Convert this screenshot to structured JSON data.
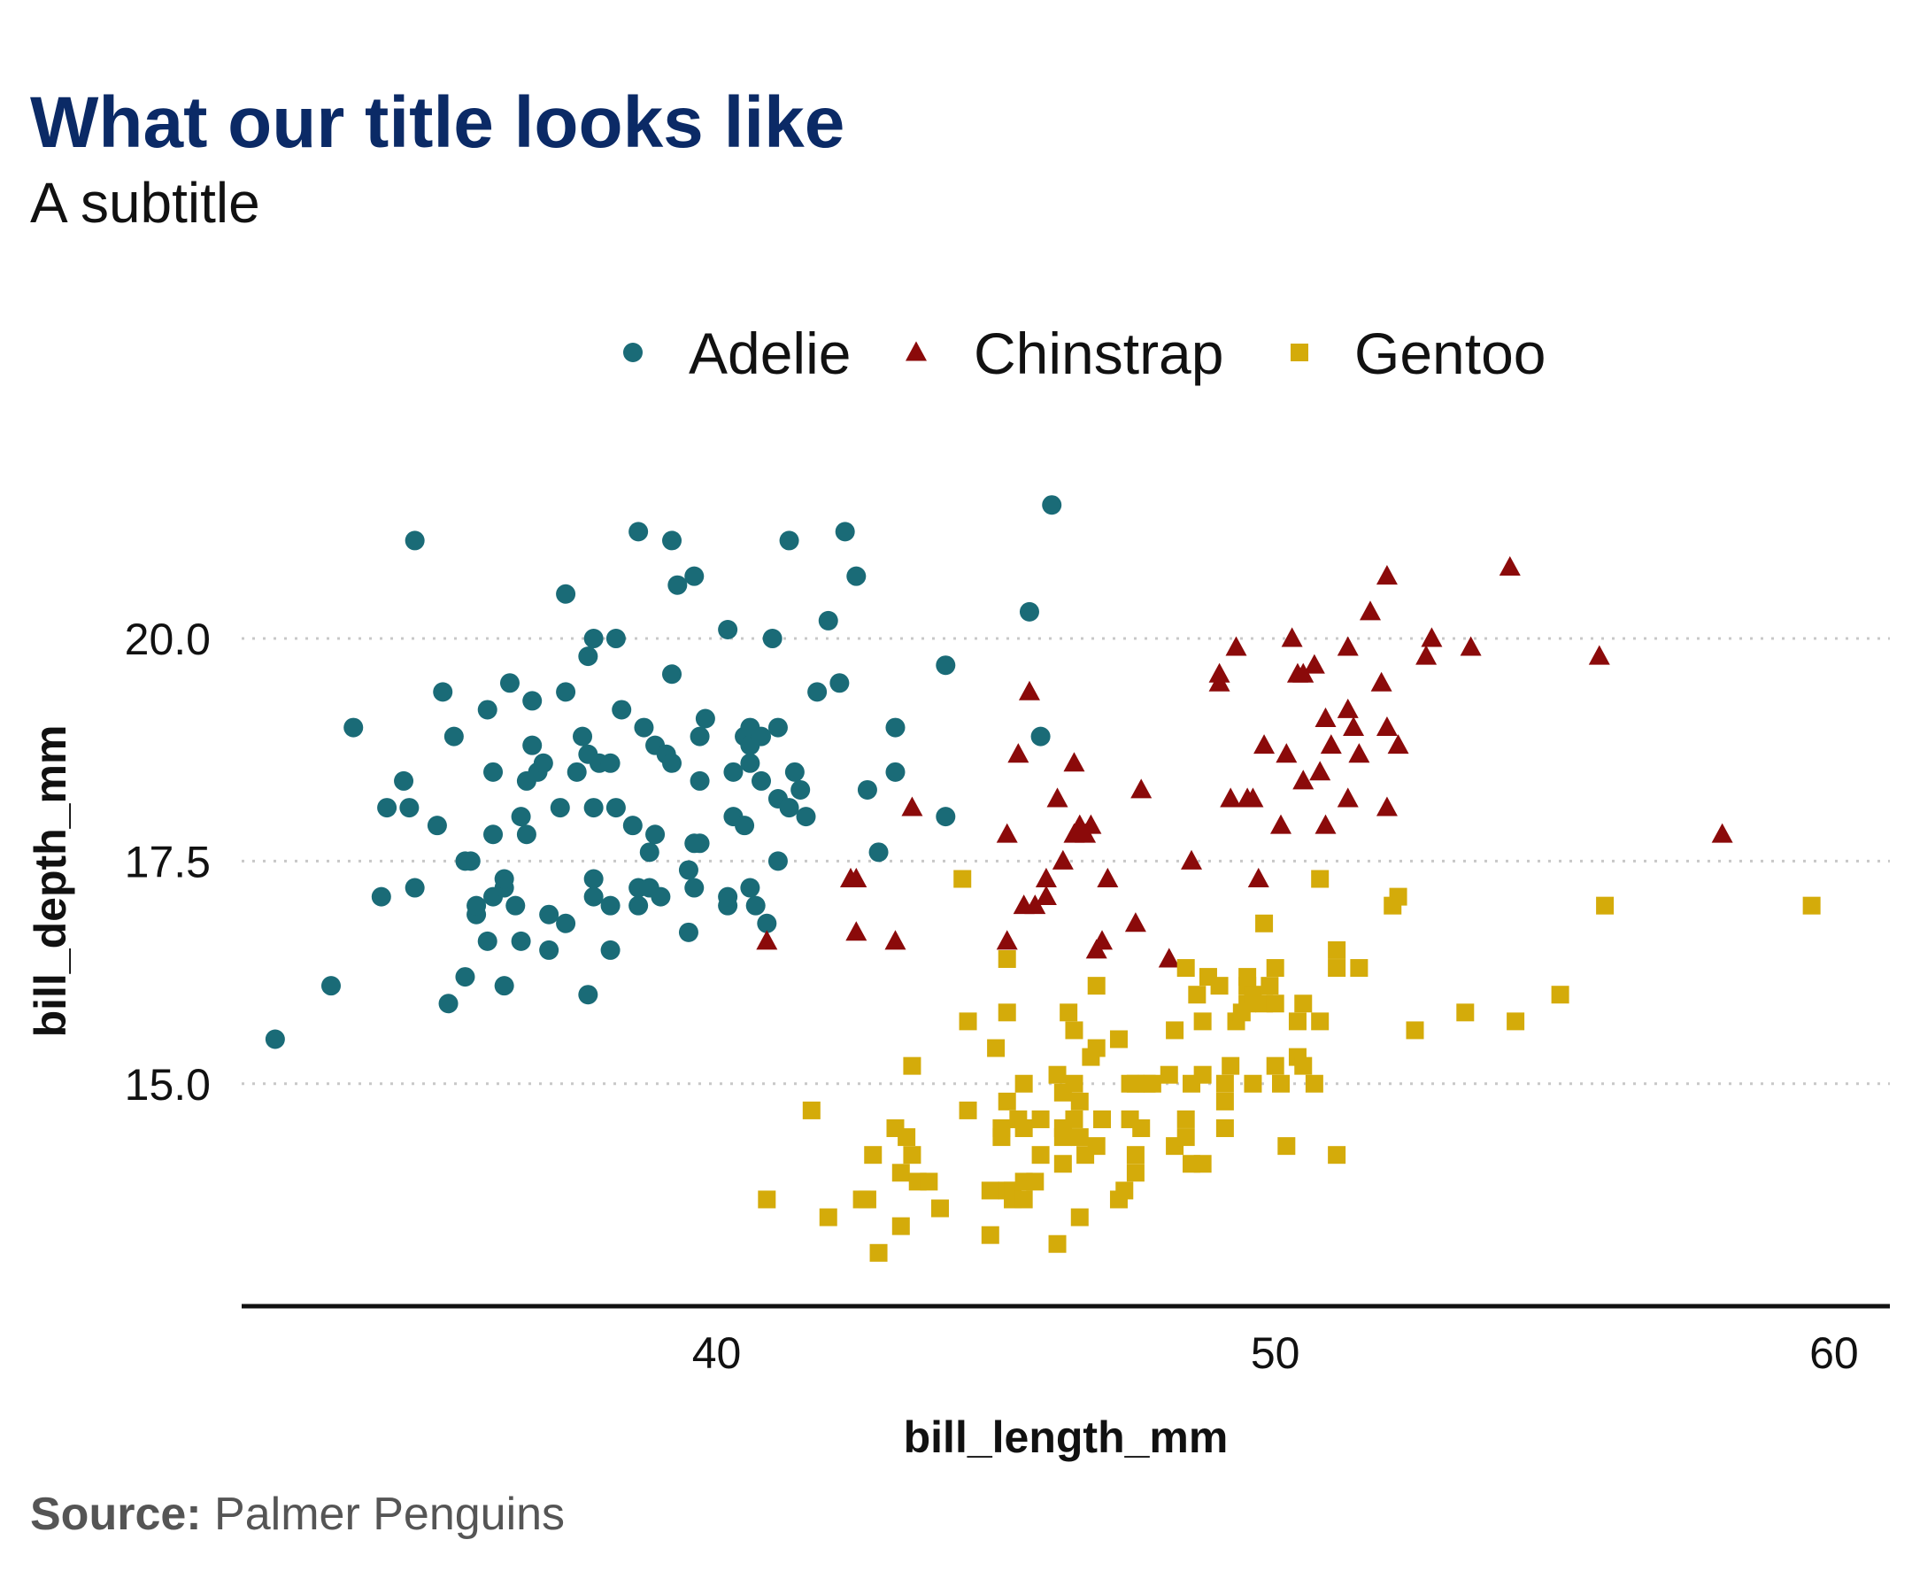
{
  "title": "What our title looks like",
  "subtitle": "A subtitle",
  "caption": {
    "label": "Source:",
    "text": " Palmer Penguins"
  },
  "chart_data": {
    "type": "scatter",
    "xlabel": "bill_length_mm",
    "ylabel": "bill_depth_mm",
    "xlim": [
      31.5,
      61
    ],
    "ylim": [
      12.7,
      21.9
    ],
    "xticks": [
      40,
      50,
      60
    ],
    "xtick_labels": [
      "40",
      "50",
      "60"
    ],
    "yticks": [
      15,
      17.5,
      20
    ],
    "ytick_labels": [
      "15.0",
      "17.5",
      "20.0"
    ],
    "grid": "horizontal dotted",
    "legend_position": "top",
    "series": [
      {
        "name": "Adelie",
        "color": "#1a6b77",
        "marker": "circle",
        "points": [
          [
            32.1,
            15.5
          ],
          [
            33.1,
            16.1
          ],
          [
            33.5,
            19.0
          ],
          [
            34.0,
            17.1
          ],
          [
            34.1,
            18.1
          ],
          [
            34.4,
            18.4
          ],
          [
            34.5,
            18.1
          ],
          [
            34.6,
            17.2
          ],
          [
            34.6,
            21.1
          ],
          [
            35.0,
            17.9
          ],
          [
            35.1,
            19.4
          ],
          [
            35.2,
            15.9
          ],
          [
            35.3,
            18.9
          ],
          [
            35.5,
            16.2
          ],
          [
            35.5,
            17.5
          ],
          [
            35.6,
            17.5
          ],
          [
            35.7,
            16.9
          ],
          [
            35.7,
            17.0
          ],
          [
            35.9,
            16.6
          ],
          [
            35.9,
            19.2
          ],
          [
            36.0,
            17.1
          ],
          [
            36.0,
            17.8
          ],
          [
            36.0,
            18.5
          ],
          [
            36.2,
            17.2
          ],
          [
            36.2,
            17.3
          ],
          [
            36.2,
            16.1
          ],
          [
            36.3,
            19.5
          ],
          [
            36.4,
            17.0
          ],
          [
            36.5,
            16.6
          ],
          [
            36.5,
            18.0
          ],
          [
            36.6,
            17.8
          ],
          [
            36.6,
            18.4
          ],
          [
            36.7,
            19.3
          ],
          [
            36.7,
            18.8
          ],
          [
            36.8,
            18.5
          ],
          [
            36.9,
            18.6
          ],
          [
            37.0,
            16.9
          ],
          [
            37.0,
            16.5
          ],
          [
            37.2,
            18.1
          ],
          [
            37.3,
            16.8
          ],
          [
            37.3,
            19.4
          ],
          [
            37.3,
            20.5
          ],
          [
            37.5,
            18.5
          ],
          [
            37.6,
            18.9
          ],
          [
            37.7,
            18.7
          ],
          [
            37.7,
            16.0
          ],
          [
            37.7,
            19.8
          ],
          [
            37.8,
            17.1
          ],
          [
            37.8,
            17.3
          ],
          [
            37.8,
            18.1
          ],
          [
            37.8,
            20.0
          ],
          [
            37.9,
            18.6
          ],
          [
            38.1,
            16.5
          ],
          [
            38.1,
            17.0
          ],
          [
            38.1,
            18.6
          ],
          [
            38.2,
            18.1
          ],
          [
            38.2,
            20.0
          ],
          [
            38.3,
            19.2
          ],
          [
            38.5,
            17.9
          ],
          [
            38.6,
            17.0
          ],
          [
            38.6,
            17.2
          ],
          [
            38.6,
            21.2
          ],
          [
            38.7,
            19.0
          ],
          [
            38.8,
            17.2
          ],
          [
            38.8,
            17.6
          ],
          [
            38.9,
            17.8
          ],
          [
            38.9,
            18.8
          ],
          [
            39.0,
            17.1
          ],
          [
            39.1,
            18.7
          ],
          [
            39.2,
            18.6
          ],
          [
            39.2,
            19.6
          ],
          [
            39.2,
            21.1
          ],
          [
            39.3,
            20.6
          ],
          [
            39.5,
            16.7
          ],
          [
            39.5,
            17.4
          ],
          [
            39.6,
            17.2
          ],
          [
            39.6,
            17.7
          ],
          [
            39.6,
            20.7
          ],
          [
            39.7,
            17.7
          ],
          [
            39.7,
            18.4
          ],
          [
            39.7,
            18.9
          ],
          [
            39.8,
            19.1
          ],
          [
            40.2,
            17.0
          ],
          [
            40.2,
            17.1
          ],
          [
            40.2,
            20.1
          ],
          [
            40.3,
            18.0
          ],
          [
            40.3,
            18.5
          ],
          [
            40.5,
            17.9
          ],
          [
            40.5,
            18.9
          ],
          [
            40.6,
            17.2
          ],
          [
            40.6,
            18.6
          ],
          [
            40.6,
            18.8
          ],
          [
            40.6,
            19.0
          ],
          [
            40.7,
            17.0
          ],
          [
            40.8,
            18.4
          ],
          [
            40.8,
            18.9
          ],
          [
            40.9,
            16.8
          ],
          [
            41.0,
            20.0
          ],
          [
            41.1,
            17.5
          ],
          [
            41.1,
            18.2
          ],
          [
            41.1,
            19.0
          ],
          [
            41.3,
            18.1
          ],
          [
            41.3,
            21.1
          ],
          [
            41.4,
            18.5
          ],
          [
            41.5,
            18.3
          ],
          [
            41.6,
            18.0
          ],
          [
            41.8,
            19.4
          ],
          [
            42.0,
            20.2
          ],
          [
            42.2,
            19.5
          ],
          [
            42.3,
            21.2
          ],
          [
            42.5,
            20.7
          ],
          [
            42.7,
            18.3
          ],
          [
            42.9,
            17.6
          ],
          [
            43.2,
            18.5
          ],
          [
            43.2,
            19.0
          ],
          [
            44.1,
            18.0
          ],
          [
            44.1,
            19.7
          ],
          [
            45.6,
            20.3
          ],
          [
            45.8,
            18.9
          ],
          [
            46.0,
            21.5
          ]
        ]
      },
      {
        "name": "Chinstrap",
        "color": "#8b0a0a",
        "marker": "triangle",
        "points": [
          [
            40.9,
            16.6
          ],
          [
            42.4,
            17.3
          ],
          [
            42.5,
            17.3
          ],
          [
            42.5,
            16.7
          ],
          [
            43.2,
            16.6
          ],
          [
            43.5,
            18.1
          ],
          [
            45.2,
            17.8
          ],
          [
            45.2,
            16.6
          ],
          [
            45.4,
            18.7
          ],
          [
            45.5,
            17.0
          ],
          [
            45.6,
            19.4
          ],
          [
            45.7,
            17.0
          ],
          [
            45.9,
            17.1
          ],
          [
            45.9,
            17.3
          ],
          [
            46.1,
            18.2
          ],
          [
            46.2,
            17.5
          ],
          [
            46.4,
            17.8
          ],
          [
            46.4,
            18.6
          ],
          [
            46.5,
            17.9
          ],
          [
            46.6,
            17.8
          ],
          [
            46.7,
            17.9
          ],
          [
            46.8,
            16.5
          ],
          [
            46.9,
            16.6
          ],
          [
            47.0,
            17.3
          ],
          [
            47.5,
            16.8
          ],
          [
            47.6,
            18.3
          ],
          [
            48.1,
            16.4
          ],
          [
            48.5,
            17.5
          ],
          [
            49.0,
            19.5
          ],
          [
            49.0,
            19.6
          ],
          [
            49.2,
            18.2
          ],
          [
            49.3,
            19.9
          ],
          [
            49.5,
            18.2
          ],
          [
            49.6,
            18.2
          ],
          [
            49.7,
            17.3
          ],
          [
            49.8,
            18.8
          ],
          [
            50.1,
            17.9
          ],
          [
            50.2,
            18.7
          ],
          [
            50.3,
            20.0
          ],
          [
            50.4,
            19.6
          ],
          [
            50.5,
            18.4
          ],
          [
            50.5,
            19.6
          ],
          [
            50.7,
            19.7
          ],
          [
            50.8,
            18.5
          ],
          [
            50.9,
            17.9
          ],
          [
            50.9,
            19.1
          ],
          [
            51.0,
            18.8
          ],
          [
            51.3,
            18.2
          ],
          [
            51.3,
            19.2
          ],
          [
            51.3,
            19.9
          ],
          [
            51.4,
            19.0
          ],
          [
            51.5,
            18.7
          ],
          [
            51.7,
            20.3
          ],
          [
            51.9,
            19.5
          ],
          [
            52.0,
            18.1
          ],
          [
            52.0,
            19.0
          ],
          [
            52.0,
            20.7
          ],
          [
            52.2,
            18.8
          ],
          [
            52.7,
            19.8
          ],
          [
            52.8,
            20.0
          ],
          [
            53.5,
            19.9
          ],
          [
            54.2,
            20.8
          ],
          [
            55.8,
            19.8
          ],
          [
            58.0,
            17.8
          ]
        ]
      },
      {
        "name": "Gentoo",
        "color": "#d4ab0a",
        "marker": "square",
        "points": [
          [
            40.9,
            13.7
          ],
          [
            41.7,
            14.7
          ],
          [
            42.0,
            13.5
          ],
          [
            42.6,
            13.7
          ],
          [
            42.7,
            13.7
          ],
          [
            42.8,
            14.2
          ],
          [
            42.9,
            13.1
          ],
          [
            43.2,
            14.5
          ],
          [
            43.3,
            13.4
          ],
          [
            43.3,
            14.0
          ],
          [
            43.4,
            14.4
          ],
          [
            43.5,
            14.2
          ],
          [
            43.5,
            15.2
          ],
          [
            43.6,
            13.9
          ],
          [
            43.8,
            13.9
          ],
          [
            44.0,
            13.6
          ],
          [
            44.4,
            17.3
          ],
          [
            44.5,
            14.7
          ],
          [
            44.5,
            15.7
          ],
          [
            44.9,
            13.3
          ],
          [
            44.9,
            13.8
          ],
          [
            45.0,
            15.4
          ],
          [
            45.1,
            14.4
          ],
          [
            45.1,
            14.5
          ],
          [
            45.2,
            13.8
          ],
          [
            45.2,
            14.8
          ],
          [
            45.2,
            15.8
          ],
          [
            45.2,
            16.4
          ],
          [
            45.3,
            13.7
          ],
          [
            45.3,
            13.8
          ],
          [
            45.4,
            14.6
          ],
          [
            45.5,
            13.7
          ],
          [
            45.5,
            13.9
          ],
          [
            45.5,
            14.5
          ],
          [
            45.5,
            15.0
          ],
          [
            45.7,
            13.9
          ],
          [
            45.8,
            14.2
          ],
          [
            45.8,
            14.6
          ],
          [
            46.1,
            13.2
          ],
          [
            46.1,
            15.1
          ],
          [
            46.2,
            14.1
          ],
          [
            46.2,
            14.4
          ],
          [
            46.2,
            14.5
          ],
          [
            46.2,
            14.9
          ],
          [
            46.3,
            15.8
          ],
          [
            46.4,
            14.6
          ],
          [
            46.4,
            15.0
          ],
          [
            46.4,
            15.6
          ],
          [
            46.5,
            13.5
          ],
          [
            46.5,
            14.4
          ],
          [
            46.5,
            14.8
          ],
          [
            46.6,
            14.2
          ],
          [
            46.7,
            15.3
          ],
          [
            46.8,
            14.3
          ],
          [
            46.8,
            15.4
          ],
          [
            46.8,
            16.1
          ],
          [
            46.9,
            14.6
          ],
          [
            47.2,
            13.7
          ],
          [
            47.2,
            15.5
          ],
          [
            47.3,
            13.8
          ],
          [
            47.4,
            14.6
          ],
          [
            47.4,
            15.0
          ],
          [
            47.5,
            14.0
          ],
          [
            47.5,
            14.2
          ],
          [
            47.5,
            15.0
          ],
          [
            47.6,
            14.5
          ],
          [
            47.7,
            15.0
          ],
          [
            47.8,
            15.0
          ],
          [
            48.1,
            15.1
          ],
          [
            48.2,
            14.3
          ],
          [
            48.2,
            15.6
          ],
          [
            48.4,
            14.4
          ],
          [
            48.4,
            14.6
          ],
          [
            48.4,
            16.3
          ],
          [
            48.5,
            14.1
          ],
          [
            48.5,
            15.0
          ],
          [
            48.6,
            16.0
          ],
          [
            48.7,
            14.1
          ],
          [
            48.7,
            15.1
          ],
          [
            48.7,
            15.7
          ],
          [
            48.8,
            16.2
          ],
          [
            49.0,
            16.1
          ],
          [
            49.1,
            14.5
          ],
          [
            49.1,
            14.8
          ],
          [
            49.1,
            15.0
          ],
          [
            49.2,
            15.2
          ],
          [
            49.3,
            15.7
          ],
          [
            49.4,
            15.8
          ],
          [
            49.5,
            15.9
          ],
          [
            49.5,
            16.1
          ],
          [
            49.5,
            16.2
          ],
          [
            49.6,
            15.0
          ],
          [
            49.6,
            16.0
          ],
          [
            49.8,
            15.9
          ],
          [
            49.8,
            16.8
          ],
          [
            49.9,
            16.1
          ],
          [
            50.0,
            15.2
          ],
          [
            50.0,
            15.9
          ],
          [
            50.0,
            16.3
          ],
          [
            50.1,
            15.0
          ],
          [
            50.2,
            14.3
          ],
          [
            50.4,
            15.3
          ],
          [
            50.4,
            15.7
          ],
          [
            50.5,
            15.2
          ],
          [
            50.5,
            15.9
          ],
          [
            50.7,
            15.0
          ],
          [
            50.8,
            15.7
          ],
          [
            50.8,
            17.3
          ],
          [
            51.1,
            14.2
          ],
          [
            51.1,
            16.3
          ],
          [
            51.1,
            16.5
          ],
          [
            51.5,
            16.3
          ],
          [
            52.1,
            17.0
          ],
          [
            52.2,
            17.1
          ],
          [
            52.5,
            15.6
          ],
          [
            53.4,
            15.8
          ],
          [
            54.3,
            15.7
          ],
          [
            55.1,
            16.0
          ],
          [
            55.9,
            17.0
          ],
          [
            59.6,
            17.0
          ]
        ]
      }
    ]
  }
}
